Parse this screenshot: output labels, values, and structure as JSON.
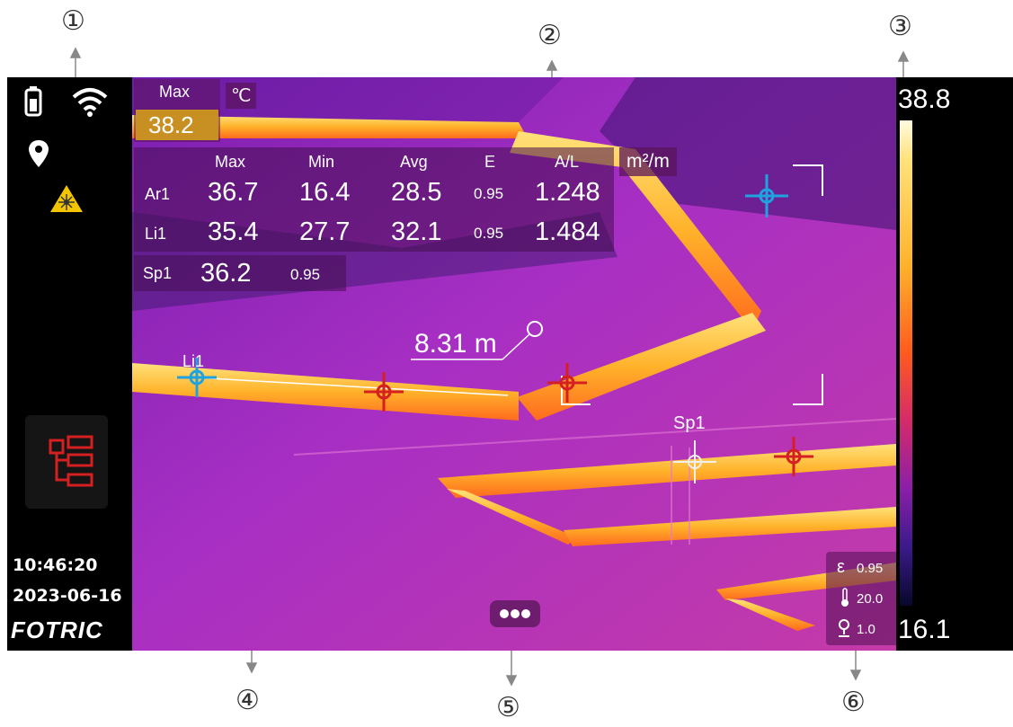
{
  "callouts": [
    "①",
    "②",
    "③",
    "④",
    "⑤",
    "⑥"
  ],
  "sidebar": {
    "icons": [
      "battery-icon",
      "wifi-icon",
      "location-icon",
      "laser-warning-icon",
      "measurement-tree-icon"
    ],
    "time": "10:46:20",
    "date": "2023-06-16",
    "brand": "FOTRIC"
  },
  "max_box": {
    "label": "Max",
    "value": "38.2",
    "unit": "℃"
  },
  "table": {
    "unit": "m²/m",
    "headers": [
      "Max",
      "Min",
      "Avg",
      "E",
      "A/L"
    ],
    "rows": [
      {
        "name": "Ar1",
        "max": "36.7",
        "min": "16.4",
        "avg": "28.5",
        "e": "0.95",
        "al": "1.248"
      },
      {
        "name": "Li1",
        "max": "35.4",
        "min": "27.7",
        "avg": "32.1",
        "e": "0.95",
        "al": "1.484"
      }
    ],
    "spot": {
      "name": "Sp1",
      "value": "36.2",
      "e": "0.95"
    }
  },
  "overlay": {
    "distance": "8.31 m",
    "line_label": "Li1",
    "spot_label": "Sp1"
  },
  "params": {
    "emissivity": "0.95",
    "reflected_temp": "20.0",
    "distance": "1.0"
  },
  "scale": {
    "max": "38.8",
    "min": "16.1"
  },
  "colors": {
    "accent_cyan": "#1fa3e0",
    "hot_marker": "#d42020",
    "panel": "#5a145a"
  }
}
